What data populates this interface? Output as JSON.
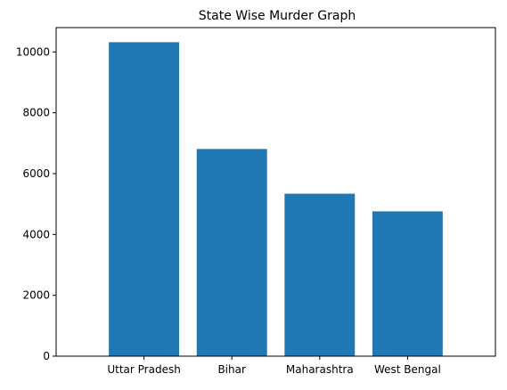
{
  "chart_data": {
    "type": "bar",
    "title": "State Wise Murder Graph",
    "xlabel": "",
    "ylabel": "",
    "categories": [
      "Uttar Pradesh",
      "Bihar",
      "Maharashtra",
      "West Bengal"
    ],
    "values": [
      10320,
      6810,
      5340,
      4760
    ],
    "ylim": [
      0,
      10800
    ],
    "yticks": [
      0,
      2000,
      4000,
      6000,
      8000,
      10000
    ],
    "grid": false,
    "bar_color": "#1f77b4"
  }
}
